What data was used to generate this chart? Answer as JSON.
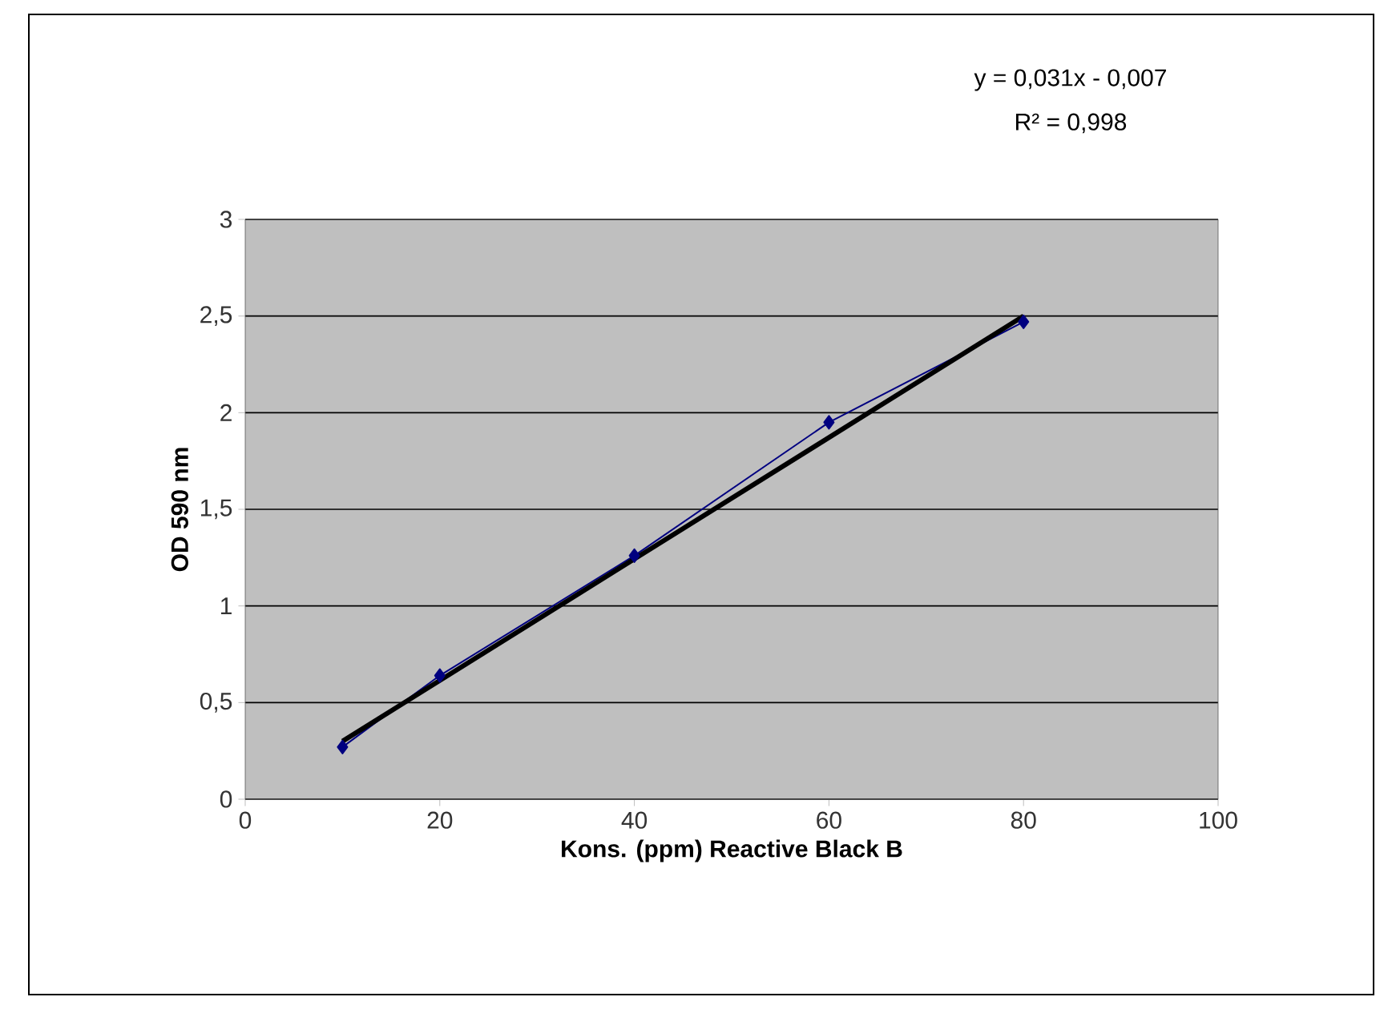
{
  "chart_data": {
    "type": "line",
    "xlabel": "Kons. (ppm) Reactive Black B",
    "ylabel": "OD 590 nm",
    "annotations": [
      "y = 0,031x - 0,007",
      "R² = 0,998"
    ],
    "x": [
      10,
      20,
      40,
      60,
      80
    ],
    "series": [
      {
        "color": "#000080",
        "values": [
          0.27,
          0.64,
          1.26,
          1.95,
          2.47
        ]
      },
      {
        "type": "line",
        "color": "#000000",
        "x": [
          10,
          80
        ],
        "values": [
          0.3,
          2.5
        ],
        "marker": "none"
      }
    ],
    "xlim": [
      0,
      100
    ],
    "ylim": [
      0,
      3
    ],
    "xticks": [
      0,
      20,
      40,
      60,
      80,
      100
    ],
    "yticks": [
      0,
      {
        "value": 0.5,
        "label": "0,5"
      },
      1,
      {
        "value": 1.5,
        "label": "1,5"
      },
      2,
      {
        "value": 2.5,
        "label": "2,5"
      },
      3
    ],
    "grid": "y",
    "marker": "diamond",
    "line_style": "solid"
  }
}
